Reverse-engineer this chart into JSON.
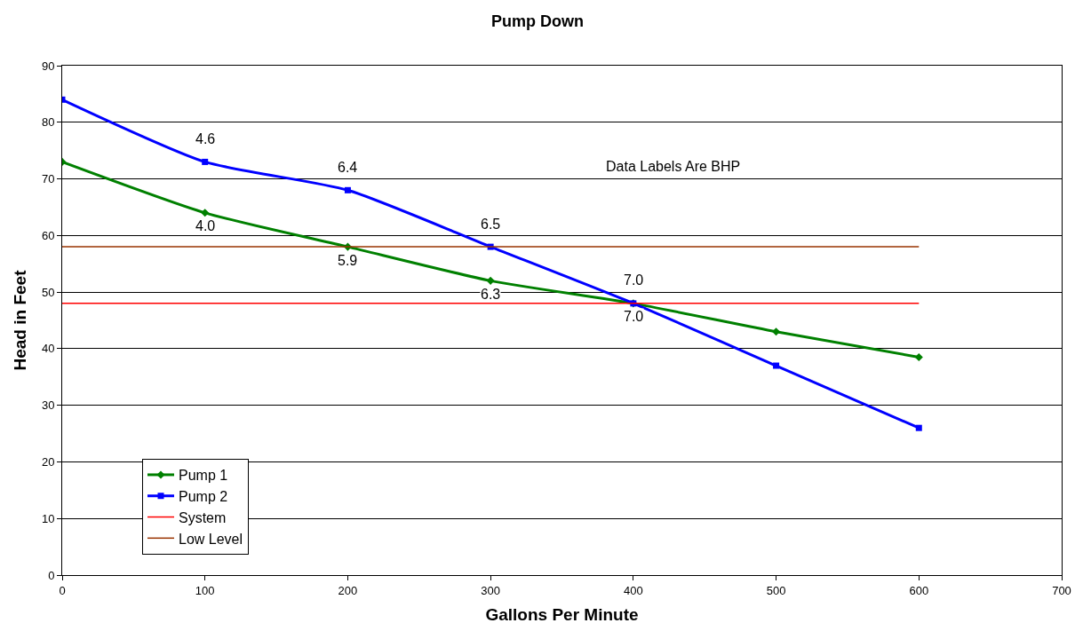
{
  "chart_data": {
    "type": "line",
    "title": "Pump Down",
    "xlabel": "Gallons Per Minute",
    "ylabel": "Head in Feet",
    "x": [
      0,
      100,
      200,
      300,
      400,
      500,
      600
    ],
    "series": [
      {
        "name": "Pump 1",
        "color": "#008000",
        "marker": "diamond",
        "values": [
          73,
          64,
          58,
          52,
          48,
          43,
          38.5
        ]
      },
      {
        "name": "Pump 2",
        "color": "#0000ff",
        "marker": "square",
        "values": [
          84,
          73,
          68,
          58,
          48,
          37,
          26
        ]
      },
      {
        "name": "System",
        "color": "#ff0000",
        "marker": "none",
        "values": [
          48,
          48,
          48,
          48,
          48,
          48,
          48
        ]
      },
      {
        "name": "Low Level",
        "color": "#993300",
        "marker": "none",
        "values": [
          58,
          58,
          58,
          58,
          58,
          58,
          58
        ]
      }
    ],
    "annotations": [
      "Data Labels Are BHP",
      {
        "text": "4.0",
        "x": 100,
        "y": 64
      },
      {
        "text": "5.9",
        "x": 200,
        "y": 58
      },
      {
        "text": "6.3",
        "x": 300,
        "y": 52
      },
      {
        "text": "7.0",
        "x": 400,
        "y": 48
      },
      {
        "text": "4.6",
        "x": 100,
        "y": 73
      },
      {
        "text": "6.4",
        "x": 200,
        "y": 68
      },
      {
        "text": "6.5",
        "x": 300,
        "y": 58
      },
      {
        "text": "7.0",
        "x": 400,
        "y": 48
      }
    ],
    "xlim": [
      0,
      700
    ],
    "xticks": [
      0,
      100,
      200,
      300,
      400,
      500,
      600,
      700
    ],
    "ylim": [
      0,
      90
    ],
    "yticks": [
      0,
      10,
      20,
      30,
      40,
      50,
      60,
      70,
      80,
      90
    ],
    "grid": "y",
    "legend": "bottom left"
  }
}
